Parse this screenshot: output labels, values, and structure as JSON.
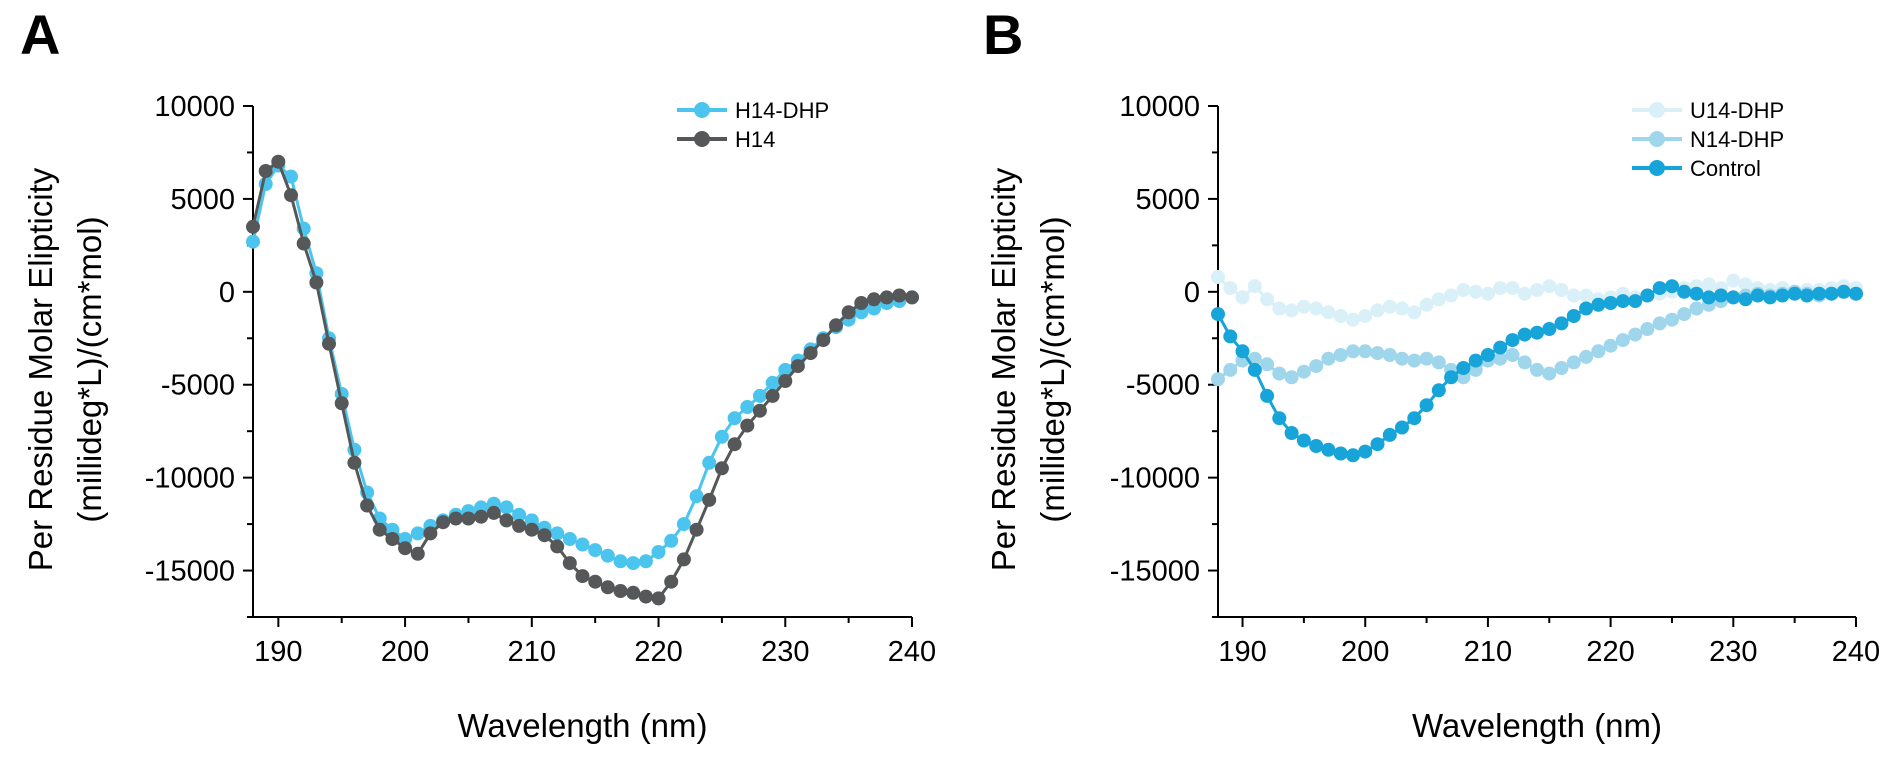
{
  "chart_data": [
    {
      "panel": "A",
      "type": "line",
      "xlabel": "Wavelength (nm)",
      "ylabel_line1": "Per Residue Molar Elipticity",
      "ylabel_line2": "(millideg*L)/(cm*mol)",
      "xlim": [
        188,
        240
      ],
      "ylim": [
        -17500,
        10000
      ],
      "xticks": [
        190,
        200,
        210,
        220,
        230,
        240
      ],
      "xtick_labels": [
        "190",
        "200",
        "210",
        "220",
        "230",
        "240"
      ],
      "yticks": [
        10000,
        5000,
        0,
        -5000,
        -10000,
        -15000
      ],
      "ytick_labels": [
        "10000",
        "5000",
        "0",
        "-5000",
        "-10000",
        "-15000"
      ],
      "legend_position": "top-right",
      "series": [
        {
          "name": "H14-DHP",
          "color": "#4bc4ee",
          "x": [
            188,
            189,
            190,
            191,
            192,
            193,
            194,
            195,
            196,
            197,
            198,
            199,
            200,
            201,
            202,
            203,
            204,
            205,
            206,
            207,
            208,
            209,
            210,
            211,
            212,
            213,
            214,
            215,
            216,
            217,
            218,
            219,
            220,
            221,
            222,
            223,
            224,
            225,
            226,
            227,
            228,
            229,
            230,
            231,
            232,
            233,
            234,
            235,
            236,
            237,
            238,
            239,
            240
          ],
          "y": [
            2700,
            5800,
            6800,
            6200,
            3400,
            1000,
            -2500,
            -5500,
            -8500,
            -10800,
            -12200,
            -12800,
            -13300,
            -13000,
            -12600,
            -12300,
            -12000,
            -11800,
            -11600,
            -11400,
            -11600,
            -12000,
            -12300,
            -12700,
            -13000,
            -13300,
            -13600,
            -13900,
            -14200,
            -14500,
            -14600,
            -14500,
            -14000,
            -13400,
            -12500,
            -11000,
            -9200,
            -7800,
            -6800,
            -6200,
            -5600,
            -4900,
            -4200,
            -3700,
            -3100,
            -2500,
            -1900,
            -1500,
            -1100,
            -900,
            -600,
            -500,
            -300
          ]
        },
        {
          "name": "H14",
          "color": "#555759",
          "x": [
            188,
            189,
            190,
            191,
            192,
            193,
            194,
            195,
            196,
            197,
            198,
            199,
            200,
            201,
            202,
            203,
            204,
            205,
            206,
            207,
            208,
            209,
            210,
            211,
            212,
            213,
            214,
            215,
            216,
            217,
            218,
            219,
            220,
            221,
            222,
            223,
            224,
            225,
            226,
            227,
            228,
            229,
            230,
            231,
            232,
            233,
            234,
            235,
            236,
            237,
            238,
            239,
            240
          ],
          "y": [
            3500,
            6500,
            7000,
            5200,
            2600,
            500,
            -2800,
            -6000,
            -9200,
            -11500,
            -12800,
            -13300,
            -13800,
            -14100,
            -13000,
            -12400,
            -12200,
            -12200,
            -12100,
            -11900,
            -12300,
            -12600,
            -12800,
            -13100,
            -13700,
            -14600,
            -15300,
            -15600,
            -15900,
            -16100,
            -16200,
            -16400,
            -16500,
            -15600,
            -14400,
            -12800,
            -11200,
            -9500,
            -8200,
            -7200,
            -6400,
            -5600,
            -4800,
            -4000,
            -3300,
            -2600,
            -1800,
            -1100,
            -600,
            -400,
            -300,
            -200,
            -300
          ]
        }
      ]
    },
    {
      "panel": "B",
      "type": "line",
      "xlabel": "Wavelength (nm)",
      "ylabel_line1": "Per Residue Molar Elipticity",
      "ylabel_line2": "(millideg*L)/(cm*mol)",
      "xlim": [
        188,
        240
      ],
      "ylim": [
        -17500,
        10000
      ],
      "xticks": [
        190,
        200,
        210,
        220,
        230,
        240
      ],
      "xtick_labels": [
        "190",
        "200",
        "210",
        "220",
        "230",
        "240"
      ],
      "yticks": [
        10000,
        5000,
        0,
        -5000,
        -10000,
        -15000
      ],
      "ytick_labels": [
        "10000",
        "5000",
        "0",
        "-5000",
        "-10000",
        "-15000"
      ],
      "legend_position": "top-right",
      "series": [
        {
          "name": "U14-DHP",
          "color": "#daf0f8",
          "x": [
            188,
            189,
            190,
            191,
            192,
            193,
            194,
            195,
            196,
            197,
            198,
            199,
            200,
            201,
            202,
            203,
            204,
            205,
            206,
            207,
            208,
            209,
            210,
            211,
            212,
            213,
            214,
            215,
            216,
            217,
            218,
            219,
            220,
            221,
            222,
            223,
            224,
            225,
            226,
            227,
            228,
            229,
            230,
            231,
            232,
            233,
            234,
            235,
            236,
            237,
            238,
            239,
            240
          ],
          "y": [
            800,
            200,
            -300,
            300,
            -400,
            -900,
            -1000,
            -800,
            -900,
            -1100,
            -1300,
            -1500,
            -1300,
            -1000,
            -800,
            -900,
            -1100,
            -700,
            -400,
            -200,
            100,
            0,
            -100,
            200,
            200,
            -100,
            100,
            300,
            100,
            -200,
            -200,
            -400,
            -300,
            -100,
            -300,
            -200,
            -100,
            0,
            200,
            300,
            400,
            200,
            600,
            400,
            200,
            100,
            200,
            0,
            100,
            100,
            200,
            300,
            200
          ]
        },
        {
          "name": "N14-DHP",
          "color": "#9fd6ec",
          "x": [
            188,
            189,
            190,
            191,
            192,
            193,
            194,
            195,
            196,
            197,
            198,
            199,
            200,
            201,
            202,
            203,
            204,
            205,
            206,
            207,
            208,
            209,
            210,
            211,
            212,
            213,
            214,
            215,
            216,
            217,
            218,
            219,
            220,
            221,
            222,
            223,
            224,
            225,
            226,
            227,
            228,
            229,
            230,
            231,
            232,
            233,
            234,
            235,
            236,
            237,
            238,
            239,
            240
          ],
          "y": [
            -4700,
            -4200,
            -3700,
            -3600,
            -3900,
            -4400,
            -4600,
            -4300,
            -4000,
            -3600,
            -3400,
            -3200,
            -3200,
            -3300,
            -3400,
            -3600,
            -3700,
            -3600,
            -3800,
            -4200,
            -4600,
            -4200,
            -3700,
            -3600,
            -3400,
            -3800,
            -4200,
            -4400,
            -4100,
            -3800,
            -3500,
            -3200,
            -2900,
            -2600,
            -2300,
            -2000,
            -1700,
            -1500,
            -1200,
            -900,
            -700,
            -500,
            -300,
            -200,
            -100,
            -200,
            -100,
            0,
            -100,
            -200,
            -100,
            0,
            -100
          ]
        },
        {
          "name": "Control",
          "color": "#17a4d9",
          "x": [
            188,
            189,
            190,
            191,
            192,
            193,
            194,
            195,
            196,
            197,
            198,
            199,
            200,
            201,
            202,
            203,
            204,
            205,
            206,
            207,
            208,
            209,
            210,
            211,
            212,
            213,
            214,
            215,
            216,
            217,
            218,
            219,
            220,
            221,
            222,
            223,
            224,
            225,
            226,
            227,
            228,
            229,
            230,
            231,
            232,
            233,
            234,
            235,
            236,
            237,
            238,
            239,
            240
          ],
          "y": [
            -1200,
            -2400,
            -3200,
            -4200,
            -5600,
            -6800,
            -7600,
            -8000,
            -8300,
            -8500,
            -8700,
            -8800,
            -8600,
            -8200,
            -7700,
            -7300,
            -6800,
            -6100,
            -5300,
            -4600,
            -4100,
            -3700,
            -3400,
            -3000,
            -2600,
            -2300,
            -2200,
            -2000,
            -1700,
            -1300,
            -900,
            -700,
            -600,
            -500,
            -500,
            -200,
            200,
            300,
            0,
            -100,
            -300,
            -200,
            -300,
            -400,
            -200,
            -300,
            -200,
            -100,
            -200,
            -100,
            -100,
            0,
            -100
          ]
        }
      ]
    }
  ]
}
